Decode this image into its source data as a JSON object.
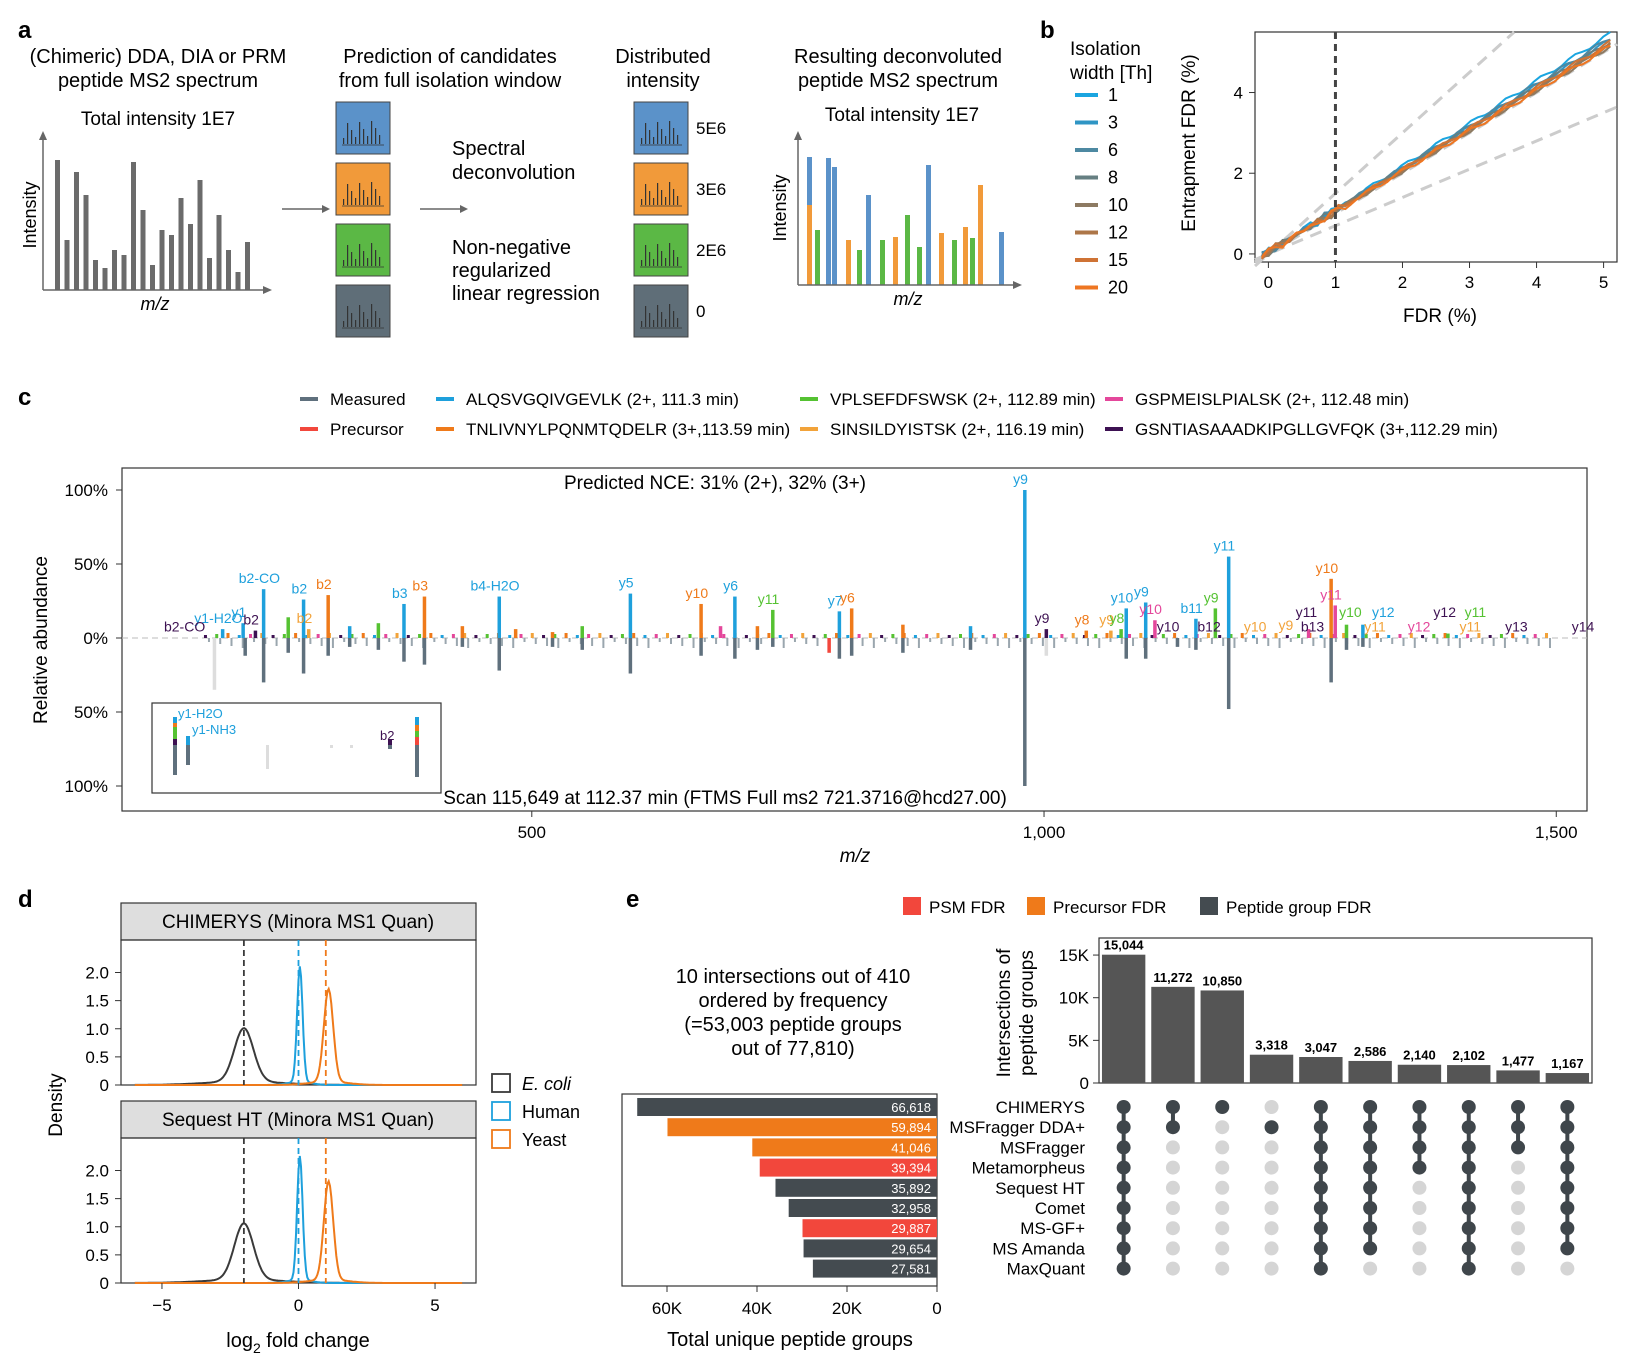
{
  "panels": {
    "a": "a",
    "b": "b",
    "c": "c",
    "d": "d",
    "e": "e"
  },
  "colors": {
    "measured": "#5f707d",
    "blue": "#1ea0dc",
    "orange": "#ef7a1a",
    "green": "#55c232",
    "lightorange": "#f2a33a",
    "pink": "#e4479b",
    "purple": "#3d1152",
    "red": "#f2473c",
    "dark": "#444b50",
    "tile_blue": "#5b92c9",
    "tile_orange": "#f19a3a",
    "tile_green": "#5bb845",
    "tile_gray": "#5f6e78"
  },
  "panel_a": {
    "input_title": [
      "(Chimeric) DDA, DIA or PRM",
      "peptide MS2 spectrum"
    ],
    "total_intensity": "Total intensity 1E7",
    "xaxis": "m/z",
    "yaxis": "Intensity",
    "prediction_title": [
      "Prediction of candidates",
      "from full isolation window"
    ],
    "method1": [
      "Spectral",
      "deconvolution"
    ],
    "method2": [
      "Non-negative",
      "regularized",
      "linear regression"
    ],
    "distributed_title": [
      "Distributed",
      "intensity"
    ],
    "distributed_values": [
      "5E6",
      "3E6",
      "2E6",
      "0"
    ],
    "result_title": [
      "Resulting deconvoluted",
      "peptide MS2 spectrum"
    ],
    "result_total": "Total intensity 1E7"
  },
  "panel_b": {
    "legend_title": [
      "Isolation",
      "width [Th]"
    ],
    "legend_items": [
      {
        "label": "1",
        "color": "#1aa5e0"
      },
      {
        "label": "3",
        "color": "#2f95c4"
      },
      {
        "label": "6",
        "color": "#4d89a2"
      },
      {
        "label": "8",
        "color": "#667f82"
      },
      {
        "label": "10",
        "color": "#8d7a62"
      },
      {
        "label": "12",
        "color": "#ad7648"
      },
      {
        "label": "15",
        "color": "#cf7335"
      },
      {
        "label": "20",
        "color": "#ee7622"
      }
    ],
    "chart_data": {
      "type": "line",
      "xlabel": "FDR (%)",
      "ylabel": "Entrapment FDR (%)",
      "xlim": [
        -0.2,
        5.2
      ],
      "ylim": [
        -0.2,
        5.5
      ],
      "xticks": [
        "0",
        "1",
        "2",
        "3",
        "4",
        "5"
      ],
      "yticks": [
        "0",
        "2",
        "4"
      ],
      "threshold_x": 1,
      "slopes": [
        1.06,
        1.03,
        1.04,
        1.02,
        1.0,
        1.01,
        1.02,
        1.0
      ]
    }
  },
  "panel_c": {
    "legend": [
      {
        "label": "Measured",
        "color": "#5f707d"
      },
      {
        "label": "Precursor",
        "color": "#f2473c"
      },
      {
        "label": "ALQSVGQIVGEVLK (2+, 111.3 min)",
        "color": "#1ea0dc"
      },
      {
        "label": "TNLIVNYLPQNMTQDELR (3+,113.59 min)",
        "color": "#ef7a1a"
      },
      {
        "label": "VPLSEFDFSWSK (2+, 112.89 min)",
        "color": "#55c232"
      },
      {
        "label": "SINSILDYISTSK (2+, 116.19 min)",
        "color": "#f2a33a"
      },
      {
        "label": "GSPMEISLPIALSK (2+, 112.48 min)",
        "color": "#e4479b"
      },
      {
        "label": "GSNTIASAAADKIPGLLGVFQK (3+,112.29 min)",
        "color": "#3d1152"
      }
    ],
    "top_text": "Predicted NCE: 31% (2+), 32% (3+)",
    "bottom_text": "Scan 115,649 at 112.37 min (FTMS Full ms2 721.3716@hcd27.00)",
    "ylabel": "Relative abundance",
    "xlabel": "m/z",
    "yticks": [
      "100%",
      "50%",
      "0%",
      "50%",
      "100%"
    ],
    "xticks": [
      "500",
      "1,000",
      "1,500"
    ],
    "chart_data": {
      "type": "bar",
      "xlim": [
        100,
        1530
      ],
      "ylim": [
        -100,
        100
      ],
      "top_peaks": [
        {
          "mz": 198,
          "v": 6,
          "c": "#1ea0dc",
          "l": "y1-H2O"
        },
        {
          "mz": 218,
          "v": 10,
          "c": "#1ea0dc",
          "l": "y1"
        },
        {
          "mz": 230,
          "v": 5,
          "c": "#3d1152",
          "l": "b2"
        },
        {
          "mz": 238,
          "v": 33,
          "c": "#1ea0dc",
          "l": "b2-CO"
        },
        {
          "mz": 262,
          "v": 14,
          "c": "#55c232"
        },
        {
          "mz": 277,
          "v": 26,
          "c": "#1ea0dc",
          "l": "b2"
        },
        {
          "mz": 282,
          "v": 6,
          "c": "#f2a33a",
          "l": "b2"
        },
        {
          "mz": 301,
          "v": 29,
          "c": "#ef7a1a",
          "l": "b2"
        },
        {
          "mz": 322,
          "v": 8,
          "c": "#1ea0dc"
        },
        {
          "mz": 350,
          "v": 10,
          "c": "#55c232"
        },
        {
          "mz": 375,
          "v": 23,
          "c": "#1ea0dc",
          "l": "b3"
        },
        {
          "mz": 395,
          "v": 28,
          "c": "#ef7a1a",
          "l": "b3"
        },
        {
          "mz": 432,
          "v": 8,
          "c": "#ef7a1a"
        },
        {
          "mz": 468,
          "v": 28,
          "c": "#1ea0dc",
          "l": "b4-H2O"
        },
        {
          "mz": 484,
          "v": 6,
          "c": "#ef7a1a"
        },
        {
          "mz": 520,
          "v": 4,
          "c": "#ef7a1a"
        },
        {
          "mz": 549,
          "v": 8,
          "c": "#55c232"
        },
        {
          "mz": 596,
          "v": 30,
          "c": "#1ea0dc",
          "l": "y5"
        },
        {
          "mz": 665,
          "v": 23,
          "c": "#ef7a1a",
          "l": "y10"
        },
        {
          "mz": 684,
          "v": 8,
          "c": "#e4479b"
        },
        {
          "mz": 698,
          "v": 28,
          "c": "#1ea0dc",
          "l": "y6"
        },
        {
          "mz": 720,
          "v": 8,
          "c": "#ef7a1a"
        },
        {
          "mz": 735,
          "v": 19,
          "c": "#55c232",
          "l": "y11"
        },
        {
          "mz": 800,
          "v": 18,
          "c": "#1ea0dc",
          "l": "y7"
        },
        {
          "mz": 812,
          "v": 20,
          "c": "#ef7a1a",
          "l": "y6"
        },
        {
          "mz": 862,
          "v": 9,
          "c": "#ef7a1a"
        },
        {
          "mz": 928,
          "v": 8,
          "c": "#1ea0dc"
        },
        {
          "mz": 981,
          "v": 100,
          "c": "#1ea0dc",
          "l": "y9"
        },
        {
          "mz": 1002,
          "v": 6,
          "c": "#3d1152",
          "l": "y9"
        },
        {
          "mz": 1041,
          "v": 5,
          "c": "#ef7a1a",
          "l": "y8"
        },
        {
          "mz": 1065,
          "v": 5,
          "c": "#f2a33a",
          "l": "y9"
        },
        {
          "mz": 1075,
          "v": 6,
          "c": "#55c232",
          "l": "y8"
        },
        {
          "mz": 1080,
          "v": 20,
          "c": "#1ea0dc",
          "l": "y10"
        },
        {
          "mz": 1099,
          "v": 24,
          "c": "#1ea0dc",
          "l": "y9"
        },
        {
          "mz": 1108,
          "v": 12,
          "c": "#e4479b",
          "l": "y10"
        },
        {
          "mz": 1148,
          "v": 13,
          "c": "#1ea0dc",
          "l": "b11"
        },
        {
          "mz": 1167,
          "v": 20,
          "c": "#55c232",
          "l": "y9"
        },
        {
          "mz": 1180,
          "v": 55,
          "c": "#1ea0dc",
          "l": "y11"
        },
        {
          "mz": 1258,
          "v": 6,
          "c": "#e4479b"
        },
        {
          "mz": 1280,
          "v": 40,
          "c": "#ef7a1a",
          "l": "y10"
        },
        {
          "mz": 1284,
          "v": 22,
          "c": "#e4479b",
          "l": "y11"
        },
        {
          "mz": 1295,
          "v": 9,
          "c": "#55c232"
        },
        {
          "mz": 1311,
          "v": 9,
          "c": "#1ea0dc"
        },
        {
          "mz": 1394,
          "v": 3,
          "c": "#55c232"
        }
      ],
      "bottom_peaks": [
        {
          "mz": 190,
          "v": 35,
          "c": "#dddddd"
        },
        {
          "mz": 220,
          "v": 12,
          "c": "#5f707d"
        },
        {
          "mz": 238,
          "v": 30,
          "c": "#5f707d"
        },
        {
          "mz": 262,
          "v": 10,
          "c": "#5f707d"
        },
        {
          "mz": 277,
          "v": 24,
          "c": "#5f707d"
        },
        {
          "mz": 301,
          "v": 12,
          "c": "#5f707d"
        },
        {
          "mz": 322,
          "v": 6,
          "c": "#5f707d"
        },
        {
          "mz": 350,
          "v": 8,
          "c": "#5f707d"
        },
        {
          "mz": 375,
          "v": 16,
          "c": "#5f707d"
        },
        {
          "mz": 395,
          "v": 18,
          "c": "#5f707d"
        },
        {
          "mz": 432,
          "v": 6,
          "c": "#5f707d"
        },
        {
          "mz": 468,
          "v": 22,
          "c": "#5f707d"
        },
        {
          "mz": 520,
          "v": 6,
          "c": "#5f707d"
        },
        {
          "mz": 549,
          "v": 8,
          "c": "#5f707d"
        },
        {
          "mz": 596,
          "v": 24,
          "c": "#5f707d"
        },
        {
          "mz": 665,
          "v": 12,
          "c": "#5f707d"
        },
        {
          "mz": 698,
          "v": 14,
          "c": "#5f707d"
        },
        {
          "mz": 720,
          "v": 8,
          "c": "#5f707d"
        },
        {
          "mz": 735,
          "v": 6,
          "c": "#5f707d"
        },
        {
          "mz": 790,
          "v": 10,
          "c": "#f2473c"
        },
        {
          "mz": 800,
          "v": 14,
          "c": "#5f707d"
        },
        {
          "mz": 812,
          "v": 12,
          "c": "#5f707d"
        },
        {
          "mz": 862,
          "v": 10,
          "c": "#5f707d"
        },
        {
          "mz": 928,
          "v": 8,
          "c": "#5f707d"
        },
        {
          "mz": 981,
          "v": 100,
          "c": "#5f707d"
        },
        {
          "mz": 1002,
          "v": 12,
          "c": "#dddddd"
        },
        {
          "mz": 1080,
          "v": 14,
          "c": "#5f707d"
        },
        {
          "mz": 1099,
          "v": 14,
          "c": "#5f707d"
        },
        {
          "mz": 1130,
          "v": 6,
          "c": "#5f707d"
        },
        {
          "mz": 1148,
          "v": 8,
          "c": "#5f707d"
        },
        {
          "mz": 1180,
          "v": 48,
          "c": "#5f707d"
        },
        {
          "mz": 1280,
          "v": 30,
          "c": "#5f707d"
        },
        {
          "mz": 1295,
          "v": 8,
          "c": "#5f707d"
        },
        {
          "mz": 1311,
          "v": 6,
          "c": "#5f707d"
        }
      ],
      "free_labels": [
        {
          "mz": 165,
          "l": "b2-CO",
          "c": "#3d1152",
          "v": 3
        },
        {
          "mz": 1125,
          "l": "y10",
          "c": "#3d1152",
          "v": 3
        },
        {
          "mz": 1165,
          "l": "b12",
          "c": "#3d1152",
          "v": 3
        },
        {
          "mz": 1210,
          "l": "y10",
          "c": "#f2a33a",
          "v": 3
        },
        {
          "mz": 1240,
          "l": "y9",
          "c": "#f2a33a",
          "v": 4
        },
        {
          "mz": 1260,
          "l": "y11",
          "c": "#3d1152",
          "v": 13
        },
        {
          "mz": 1266,
          "l": "b13",
          "c": "#3d1152",
          "v": 3
        },
        {
          "mz": 1303,
          "l": "y10",
          "c": "#55c232",
          "v": 13
        },
        {
          "mz": 1327,
          "l": "y11",
          "c": "#f2a33a",
          "v": 3
        },
        {
          "mz": 1335,
          "l": "y12",
          "c": "#1ea0dc",
          "v": 13
        },
        {
          "mz": 1370,
          "l": "y12",
          "c": "#e4479b",
          "v": 3
        },
        {
          "mz": 1395,
          "l": "y12",
          "c": "#3d1152",
          "v": 13
        },
        {
          "mz": 1420,
          "l": "y11",
          "c": "#f2a33a",
          "v": 3
        },
        {
          "mz": 1425,
          "l": "y11",
          "c": "#55c232",
          "v": 13
        },
        {
          "mz": 1465,
          "l": "y13",
          "c": "#3d1152",
          "v": 3
        },
        {
          "mz": 1530,
          "l": "y14",
          "c": "#3d1152",
          "v": 3
        }
      ],
      "inset_labels": [
        "y1-H2O",
        "y1-NH3",
        "b2"
      ]
    }
  },
  "panel_d": {
    "top_title": "CHIMERYS (Minora MS1 Quan)",
    "bottom_title": "Sequest HT (Minora MS1 Quan)",
    "ylabel": "Density",
    "xlabel": "log",
    "xlabel_sub": "2",
    "xlabel_rest": " fold change",
    "yticks": [
      "0",
      "0.5",
      "1.0",
      "1.5",
      "2.0"
    ],
    "xticks": [
      "−5",
      "0",
      "5"
    ],
    "legend": [
      {
        "label": "E. coli",
        "color": "#3a3a3a"
      },
      {
        "label": "Human",
        "color": "#1ea0dc"
      },
      {
        "label": "Yeast",
        "color": "#ef7a1a"
      }
    ],
    "chart_data": {
      "type": "area",
      "xlim": [
        -6.5,
        6.5
      ],
      "ylim": [
        0,
        2.4
      ],
      "top": {
        "ecoli": {
          "mu": -2.0,
          "sd": 0.35,
          "h": 0.95
        },
        "human": {
          "mu": 0.05,
          "sd": 0.1,
          "h": 2.05
        },
        "yeast": {
          "mu": 1.1,
          "sd": 0.17,
          "h": 1.65
        }
      },
      "bottom": {
        "ecoli": {
          "mu": -2.0,
          "sd": 0.35,
          "h": 1.0
        },
        "human": {
          "mu": 0.05,
          "sd": 0.1,
          "h": 2.2
        },
        "yeast": {
          "mu": 1.1,
          "sd": 0.17,
          "h": 1.75
        }
      },
      "vlines": [
        -2,
        0,
        1
      ]
    }
  },
  "panel_e": {
    "legend": [
      {
        "label": "PSM FDR",
        "color": "#f2473c"
      },
      {
        "label": "Precursor FDR",
        "color": "#ef7a1a"
      },
      {
        "label": "Peptide group FDR",
        "color": "#444b50"
      }
    ],
    "description": [
      "10 intersections out of 410",
      "ordered by frequency",
      "(=53,003 peptide groups",
      "out of 77,810)"
    ],
    "bar_ylabel": [
      "Intersections of",
      "peptide groups"
    ],
    "bar_yticks": [
      "0",
      "5K",
      "10K",
      "15K"
    ],
    "bar_xlabel": "Total unique peptide groups",
    "bar_xticks": [
      "60K",
      "40K",
      "20K",
      "0"
    ],
    "tools": [
      {
        "name": "CHIMERYS",
        "total": 66618,
        "label": "66,618",
        "fdr": "#444b50"
      },
      {
        "name": "MSFragger DDA+",
        "total": 59894,
        "label": "59,894",
        "fdr": "#ef7a1a"
      },
      {
        "name": "MSFragger",
        "total": 41046,
        "label": "41,046",
        "fdr": "#ef7a1a"
      },
      {
        "name": "Metamorpheus",
        "total": 39394,
        "label": "39,394",
        "fdr": "#f2473c"
      },
      {
        "name": "Sequest HT",
        "total": 35892,
        "label": "35,892",
        "fdr": "#444b50"
      },
      {
        "name": "Comet",
        "total": 32958,
        "label": "32,958",
        "fdr": "#444b50"
      },
      {
        "name": "MS-GF+",
        "total": 29887,
        "label": "29,887",
        "fdr": "#f2473c"
      },
      {
        "name": "MS Amanda",
        "total": 29654,
        "label": "29,654",
        "fdr": "#444b50"
      },
      {
        "name": "MaxQuant",
        "total": 27581,
        "label": "27,581",
        "fdr": "#444b50"
      }
    ],
    "chart_data": {
      "type": "bar",
      "intersections": [
        {
          "value": 15044,
          "label": "15,044",
          "members": [
            0,
            1,
            2,
            3,
            4,
            5,
            6,
            7,
            8
          ]
        },
        {
          "value": 11272,
          "label": "11,272",
          "members": [
            0,
            1
          ]
        },
        {
          "value": 10850,
          "label": "10,850",
          "members": [
            0
          ]
        },
        {
          "value": 3318,
          "label": "3,318",
          "members": [
            1
          ]
        },
        {
          "value": 3047,
          "label": "3,047",
          "members": [
            0,
            1,
            2,
            3,
            4,
            5,
            6,
            7,
            8
          ]
        },
        {
          "value": 2586,
          "label": "2,586",
          "members": [
            0,
            1,
            2,
            3,
            4,
            5,
            6,
            7
          ]
        },
        {
          "value": 2140,
          "label": "2,140",
          "members": [
            0,
            1,
            2,
            3
          ]
        },
        {
          "value": 2102,
          "label": "2,102",
          "members": [
            0,
            1,
            2,
            3,
            4,
            5,
            6,
            7,
            8
          ]
        },
        {
          "value": 1477,
          "label": "1,477",
          "members": [
            0,
            1,
            2
          ]
        },
        {
          "value": 1167,
          "label": "1,167",
          "members": [
            0,
            1,
            2,
            3,
            4,
            5,
            6,
            7
          ]
        }
      ],
      "ylim": [
        0,
        17000
      ],
      "total_xlim": [
        0,
        70000
      ]
    }
  }
}
